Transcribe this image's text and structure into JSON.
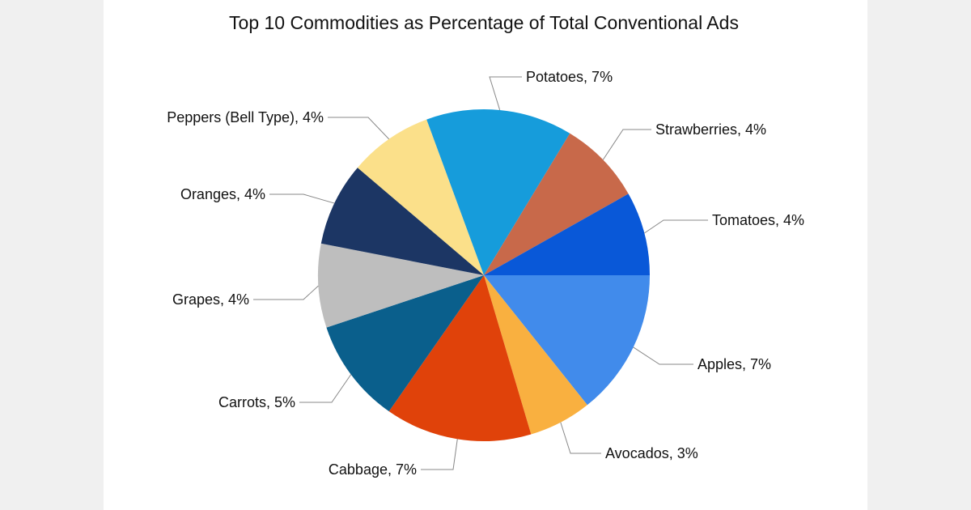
{
  "chart_data": {
    "type": "pie",
    "title": "Top 10 Commodities as Percentage of Total Conventional Ads",
    "start_angle": "3 o'clock, clockwise",
    "slices": [
      {
        "label": "Apples, 7%",
        "name": "Apples",
        "value": 7,
        "color": "#418BEB"
      },
      {
        "label": "Avocados, 3%",
        "name": "Avocados",
        "value": 3,
        "color": "#F9B040"
      },
      {
        "label": "Cabbage, 7%",
        "name": "Cabbage",
        "value": 7,
        "color": "#E0420A"
      },
      {
        "label": "Carrots, 5%",
        "name": "Carrots",
        "value": 5,
        "color": "#0A5F8C"
      },
      {
        "label": "Grapes, 4%",
        "name": "Grapes",
        "value": 4,
        "color": "#BEBEBE"
      },
      {
        "label": "Oranges, 4%",
        "name": "Oranges",
        "value": 4,
        "color": "#1C3664"
      },
      {
        "label": "Peppers (Bell Type), 4%",
        "name": "Peppers (Bell Type)",
        "value": 4,
        "color": "#FBE08A"
      },
      {
        "label": "Potatoes, 7%",
        "name": "Potatoes",
        "value": 7,
        "color": "#169CDB"
      },
      {
        "label": "Strawberries, 4%",
        "name": "Strawberries",
        "value": 4,
        "color": "#C8694A"
      },
      {
        "label": "Tomatoes, 4%",
        "name": "Tomatoes",
        "value": 4,
        "color": "#0958D8"
      }
    ],
    "legend": "none (callout labels)"
  }
}
